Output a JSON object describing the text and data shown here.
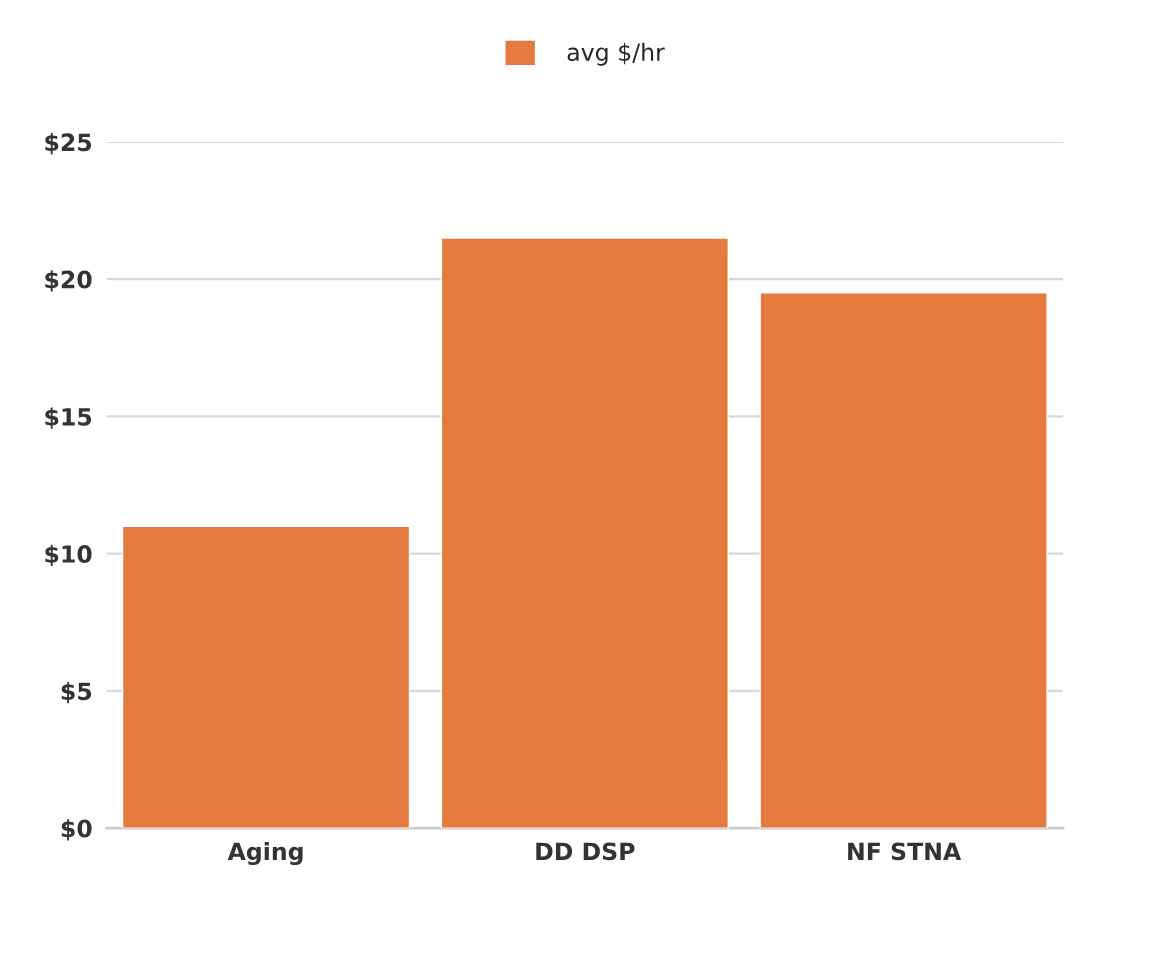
{
  "chart_data": {
    "type": "bar",
    "categories": [
      "Aging",
      "DD DSP",
      "NF STNA"
    ],
    "series": [
      {
        "name": "avg $/hr",
        "color": "#e47a3e",
        "values": [
          11,
          21.5,
          19.5
        ]
      }
    ],
    "ylim": [
      0,
      25
    ],
    "yticks": [
      {
        "value": 0,
        "label": "$0"
      },
      {
        "value": 5,
        "label": "$5"
      },
      {
        "value": 10,
        "label": "$10"
      },
      {
        "value": 15,
        "label": "$15"
      },
      {
        "value": 20,
        "label": "$20"
      },
      {
        "value": 25,
        "label": "$25"
      }
    ],
    "grid": "y",
    "legend": "top"
  }
}
